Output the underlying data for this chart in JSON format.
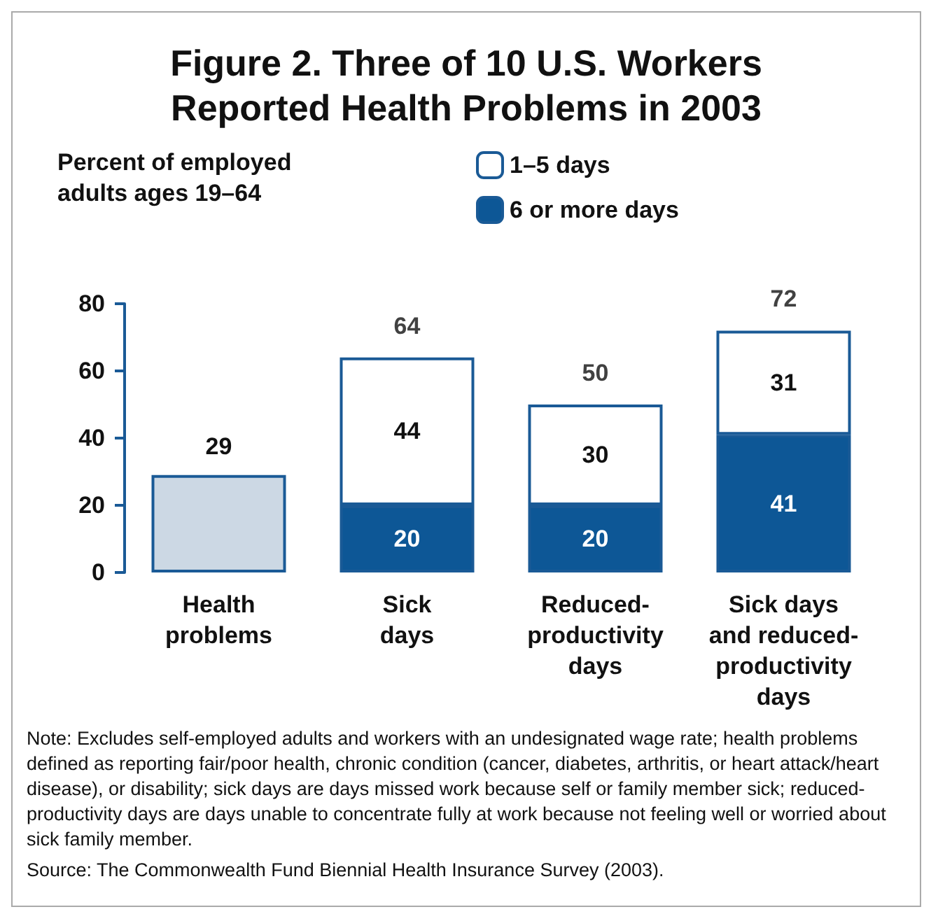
{
  "chart_data": {
    "type": "bar",
    "title": "Figure 2. Three of 10 U.S. Workers\nReported Health Problems in 2003",
    "ylabel": "Percent of employed\nadults ages 19–64",
    "categories": [
      "Health\nproblems",
      "Sick\ndays",
      "Reduced-\nproductivity\ndays",
      "Sick days\nand reduced-\nproductivity\ndays"
    ],
    "stacked": true,
    "series": [
      {
        "color": "#ccd8e4",
        "values": [
          29,
          null,
          null,
          null
        ]
      },
      {
        "name": "6 or more days",
        "color": "#0d5796",
        "values": [
          null,
          20,
          20,
          41
        ]
      },
      {
        "name": "1–5 days",
        "color": "#ffffff",
        "values": [
          null,
          44,
          30,
          31
        ]
      }
    ],
    "totals": [
      null,
      "64",
      "50",
      "72"
    ],
    "data_labels": true,
    "ylim": [
      0,
      80
    ],
    "yticks": [
      0,
      20,
      40,
      60,
      80
    ],
    "grid": false,
    "legend": "top",
    "annotations": [
      "Note: Excludes self-employed adults and workers with an undesignated wage rate; health problems defined as reporting fair/poor health, chronic condition (cancer, diabetes, arthritis, or heart attack/heart disease), or disability; sick days are days missed work because self or family member sick; reduced-productivity days are days unable to concentrate fully at work because not feeling well or worried about sick family member.",
      "Source: The Commonwealth Fund Biennial Health Insurance Survey (2003)."
    ]
  }
}
